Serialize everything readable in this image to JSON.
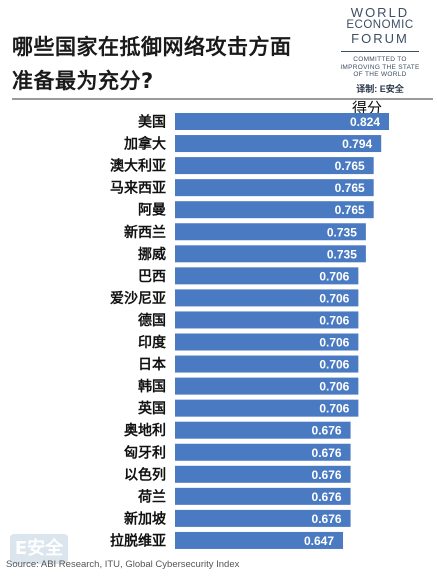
{
  "title_lines": [
    "哪些国家在抵御网络攻击方面",
    "准备最为充分?"
  ],
  "brand": {
    "line1": "WORLD",
    "line2": "ECONOMIC",
    "line3": "FORUM",
    "tag1": "COMMITTED TO",
    "tag2": "IMPROVING THE STATE",
    "tag3": "OF THE WORLD",
    "translator": "译制: E安全"
  },
  "score_header": "得分",
  "source": "Source: ABI Research, ITU, Global Cybersecurity Index",
  "watermark": "E安全",
  "colors": {
    "bar": "#4a7ac1",
    "label_text": "#ffffff"
  },
  "chart_data": {
    "type": "bar",
    "orientation": "horizontal",
    "categories": [
      "美国",
      "加拿大",
      "澳大利亚",
      "马来西亚",
      "阿曼",
      "新西兰",
      "挪威",
      "巴西",
      "爱沙尼亚",
      "德国",
      "印度",
      "日本",
      "韩国",
      "英国",
      "奥地利",
      "匈牙利",
      "以色列",
      "荷兰",
      "新加坡",
      "拉脱维亚"
    ],
    "values": [
      0.824,
      0.794,
      0.765,
      0.765,
      0.765,
      0.735,
      0.735,
      0.706,
      0.706,
      0.706,
      0.706,
      0.706,
      0.706,
      0.706,
      0.676,
      0.676,
      0.676,
      0.676,
      0.676,
      0.647
    ],
    "value_labels": [
      "0.824",
      "0.794",
      "0.765",
      "0.765",
      "0.765",
      "0.735",
      "0.735",
      "0.706",
      "0.706",
      "0.706",
      "0.706",
      "0.706",
      "0.706",
      "0.706",
      "0.676",
      "0.676",
      "0.676",
      "0.676",
      "0.676",
      "0.647"
    ],
    "xlim": [
      0,
      0.824
    ],
    "grid": false,
    "legend": "none"
  }
}
